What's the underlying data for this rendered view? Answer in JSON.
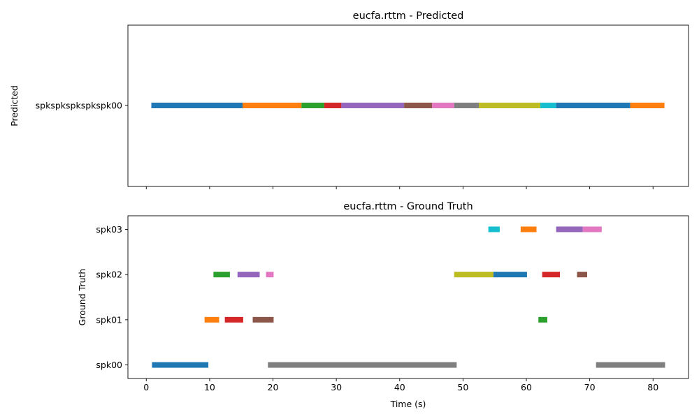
{
  "colors": {
    "tab_blue": "#1f77b4",
    "tab_orange": "#ff7f0e",
    "tab_green": "#2ca02c",
    "tab_red": "#d62728",
    "tab_purple": "#9467bd",
    "tab_brown": "#8c564b",
    "tab_pink": "#e377c2",
    "tab_gray": "#7f7f7f",
    "tab_olive": "#bcbd22",
    "tab_cyan": "#17becf"
  },
  "chart_data": [
    {
      "type": "bar",
      "subtype": "horizontal-timeline",
      "title": "eucfa.rttm - Predicted",
      "ylabel": "Predicted",
      "xlabel": "",
      "xlim": [
        -2.9,
        85.6
      ],
      "xticks": [
        0,
        10,
        20,
        30,
        40,
        50,
        60,
        70,
        80
      ],
      "show_xtick_labels": false,
      "categories": [
        "spkspkspkspkspk00"
      ],
      "segments": [
        {
          "speaker": "spkspkspkspkspk00",
          "start": 0.8,
          "end": 15.2,
          "color": "#1f77b4"
        },
        {
          "speaker": "spkspkspkspkspk00",
          "start": 15.2,
          "end": 24.5,
          "color": "#ff7f0e"
        },
        {
          "speaker": "spkspkspkspkspk00",
          "start": 24.5,
          "end": 28.1,
          "color": "#2ca02c"
        },
        {
          "speaker": "spkspkspkspkspk00",
          "start": 28.1,
          "end": 30.8,
          "color": "#d62728"
        },
        {
          "speaker": "spkspkspkspkspk00",
          "start": 30.8,
          "end": 40.7,
          "color": "#9467bd"
        },
        {
          "speaker": "spkspkspkspkspk00",
          "start": 40.7,
          "end": 45.1,
          "color": "#8c564b"
        },
        {
          "speaker": "spkspkspkspkspk00",
          "start": 45.1,
          "end": 48.6,
          "color": "#e377c2"
        },
        {
          "speaker": "spkspkspkspkspk00",
          "start": 48.6,
          "end": 52.5,
          "color": "#7f7f7f"
        },
        {
          "speaker": "spkspkspkspkspk00",
          "start": 52.5,
          "end": 62.2,
          "color": "#bcbd22"
        },
        {
          "speaker": "spkspkspkspkspk00",
          "start": 62.2,
          "end": 64.7,
          "color": "#17becf"
        },
        {
          "speaker": "spkspkspkspkspk00",
          "start": 64.7,
          "end": 76.4,
          "color": "#1f77b4"
        },
        {
          "speaker": "spkspkspkspkspk00",
          "start": 76.4,
          "end": 81.8,
          "color": "#ff7f0e"
        }
      ]
    },
    {
      "type": "bar",
      "subtype": "horizontal-timeline",
      "title": "eucfa.rttm - Ground Truth",
      "ylabel": "Ground Truth",
      "xlabel": "Time (s)",
      "xlim": [
        -2.9,
        85.6
      ],
      "xticks": [
        0,
        10,
        20,
        30,
        40,
        50,
        60,
        70,
        80
      ],
      "show_xtick_labels": true,
      "categories": [
        "spk00",
        "spk01",
        "spk02",
        "spk03"
      ],
      "segments": [
        {
          "speaker": "spk00",
          "start": 0.9,
          "end": 9.8,
          "color": "#1f77b4"
        },
        {
          "speaker": "spk00",
          "start": 19.2,
          "end": 49.0,
          "color": "#7f7f7f"
        },
        {
          "speaker": "spk00",
          "start": 71.0,
          "end": 81.9,
          "color": "#7f7f7f"
        },
        {
          "speaker": "spk01",
          "start": 9.2,
          "end": 11.5,
          "color": "#ff7f0e"
        },
        {
          "speaker": "spk01",
          "start": 12.4,
          "end": 15.3,
          "color": "#d62728"
        },
        {
          "speaker": "spk01",
          "start": 16.8,
          "end": 20.1,
          "color": "#8c564b"
        },
        {
          "speaker": "spk01",
          "start": 61.9,
          "end": 63.3,
          "color": "#2ca02c"
        },
        {
          "speaker": "spk02",
          "start": 10.6,
          "end": 13.2,
          "color": "#2ca02c"
        },
        {
          "speaker": "spk02",
          "start": 14.4,
          "end": 17.9,
          "color": "#9467bd"
        },
        {
          "speaker": "spk02",
          "start": 18.9,
          "end": 20.1,
          "color": "#e377c2"
        },
        {
          "speaker": "spk02",
          "start": 48.6,
          "end": 54.8,
          "color": "#bcbd22"
        },
        {
          "speaker": "spk02",
          "start": 54.8,
          "end": 60.1,
          "color": "#1f77b4"
        },
        {
          "speaker": "spk02",
          "start": 62.5,
          "end": 65.3,
          "color": "#d62728"
        },
        {
          "speaker": "spk02",
          "start": 68.0,
          "end": 69.6,
          "color": "#8c564b"
        },
        {
          "speaker": "spk03",
          "start": 54.0,
          "end": 55.8,
          "color": "#17becf"
        },
        {
          "speaker": "spk03",
          "start": 59.1,
          "end": 61.6,
          "color": "#ff7f0e"
        },
        {
          "speaker": "spk03",
          "start": 64.7,
          "end": 68.9,
          "color": "#9467bd"
        },
        {
          "speaker": "spk03",
          "start": 68.9,
          "end": 71.9,
          "color": "#e377c2"
        }
      ]
    }
  ]
}
